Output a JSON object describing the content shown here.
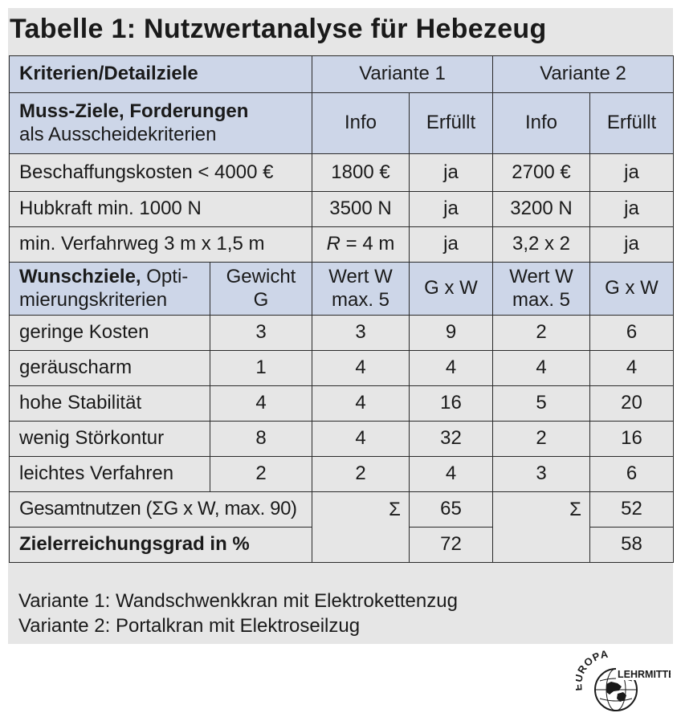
{
  "title": "Tabelle 1:  Nutzwertanalyse für Hebezeug",
  "header": {
    "criteria": "Kriterien/Detailziele",
    "variant1": "Variante 1",
    "variant2": "Variante 2"
  },
  "muss": {
    "heading_bold": "Muss-Ziele, Forderungen",
    "heading_sub": "als Ausscheidekriterien",
    "col_info": "Info",
    "col_fulfilled": "Erfüllt",
    "rows": [
      {
        "label": "Beschaffungskosten < 4000 €",
        "v1_info": "1800 €",
        "v1_ok": "ja",
        "v2_info": "2700 €",
        "v2_ok": "ja"
      },
      {
        "label": "Hubkraft  min. 1000 N",
        "v1_info": "3500 N",
        "v1_ok": "ja",
        "v2_info": "3200 N",
        "v2_ok": "ja"
      },
      {
        "label": "min. Verfahrweg 3 m x 1,5 m",
        "v1_info_var": "R",
        "v1_info_rest": " = 4 m",
        "v1_ok": "ja",
        "v2_info": "3,2 x 2",
        "v2_ok": "ja"
      }
    ]
  },
  "wunsch": {
    "heading_bold": "Wunschziele,",
    "heading_rest1": " Opti-",
    "heading_rest2": "mierungskriterien",
    "col_weight_1": "Gewicht",
    "col_weight_2": "G",
    "col_value_1": "Wert W",
    "col_value_2": "max. 5",
    "col_product": "G x W",
    "rows": [
      {
        "label": "geringe Kosten",
        "g": "3",
        "w1": "3",
        "gw1": "9",
        "w2": "2",
        "gw2": "6"
      },
      {
        "label": "geräuscharm",
        "g": "1",
        "w1": "4",
        "gw1": "4",
        "w2": "4",
        "gw2": "4"
      },
      {
        "label": "hohe Stabilität",
        "g": "4",
        "w1": "4",
        "gw1": "16",
        "w2": "5",
        "gw2": "20"
      },
      {
        "label": "wenig Störkontur",
        "g": "8",
        "w1": "4",
        "gw1": "32",
        "w2": "2",
        "gw2": "16"
      },
      {
        "label": "leichtes Verfahren",
        "g": "2",
        "w1": "2",
        "gw1": "4",
        "w2": "3",
        "gw2": "6"
      }
    ]
  },
  "totals": {
    "total_label": "Gesamtnutzen (ΣG x W, max. 90)",
    "sigma": "Σ",
    "total_v1": "65",
    "total_v2": "52",
    "degree_label": "Zielerreichungsgrad in %",
    "degree_v1": "72",
    "degree_v2": "58"
  },
  "notes": [
    "Variante 1: Wandschwenkkran mit Elektrokettenzug",
    "Variante 2: Portalkran mit Elektroseilzug"
  ],
  "logo": {
    "top_text": "EUROPA",
    "right_text": "LEHRMITTEL",
    "icon": "globe-icon"
  }
}
